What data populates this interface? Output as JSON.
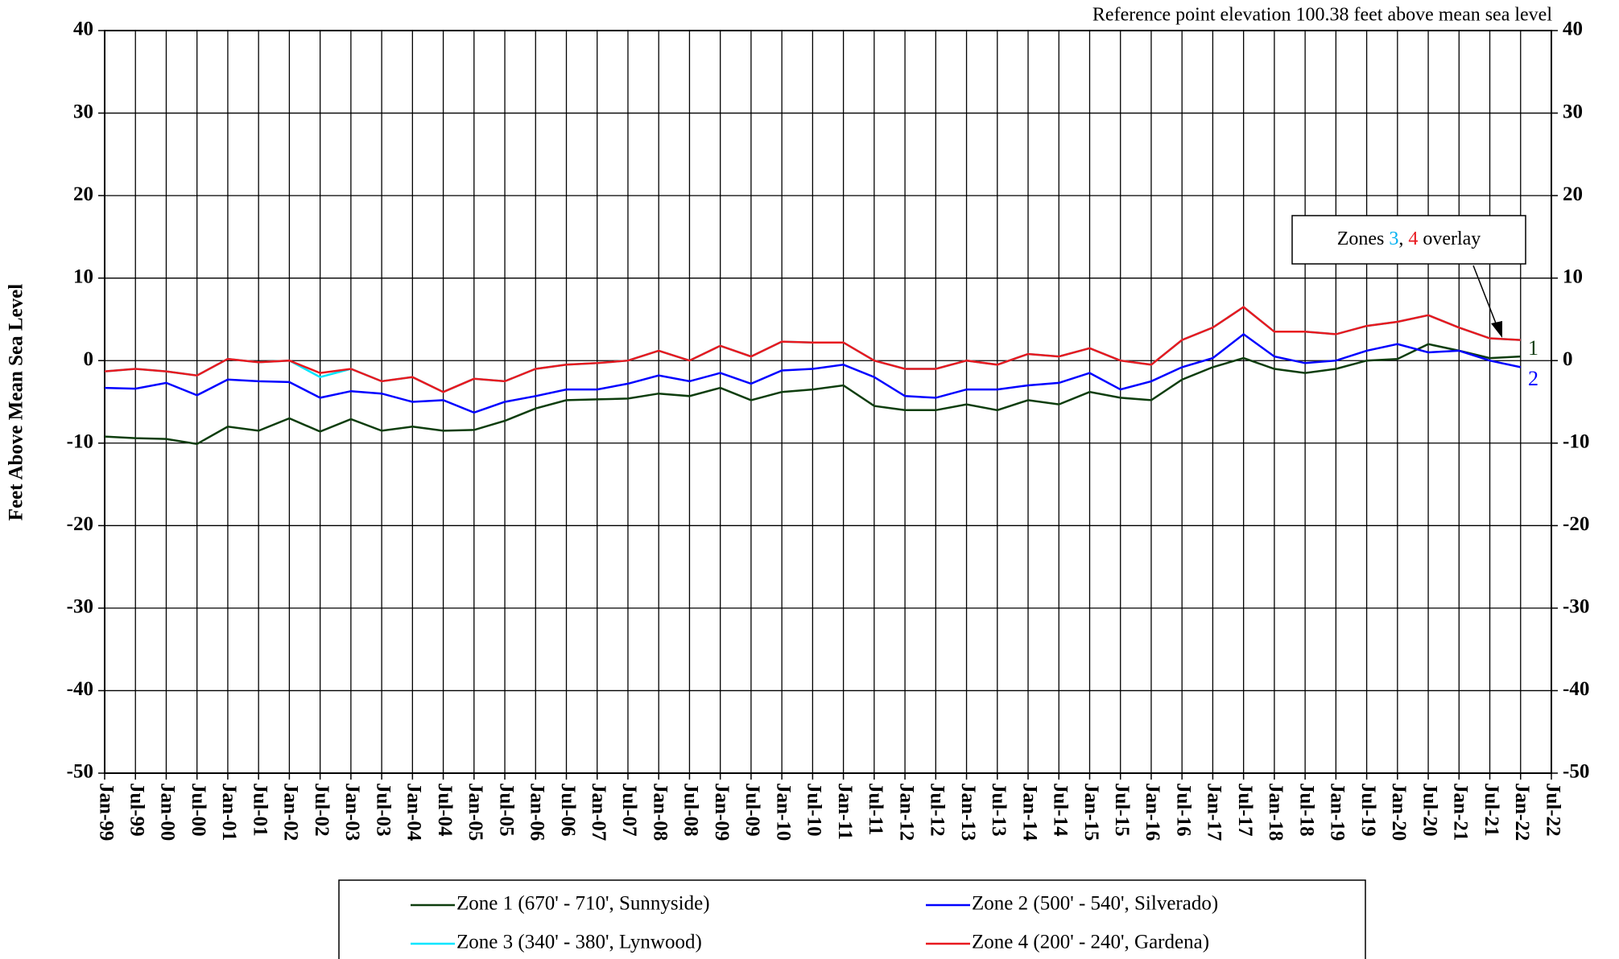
{
  "chart_data": {
    "type": "line",
    "annotation": "Reference point elevation 100.38 feet above mean sea level",
    "overlay_note": [
      "Zones ",
      "3",
      ", ",
      "4",
      " overlay"
    ],
    "series_labels": [
      "1",
      "2"
    ],
    "y_label": "Feet Above Mean Sea Level",
    "categories": [
      "Jan-99",
      "Jul-99",
      "Jan-00",
      "Jul-00",
      "Jan-01",
      "Jul-01",
      "Jan-02",
      "Jul-02",
      "Jan-03",
      "Jul-03",
      "Jan-04",
      "Jul-04",
      "Jan-05",
      "Jul-05",
      "Jan-06",
      "Jul-06",
      "Jan-07",
      "Jul-07",
      "Jan-08",
      "Jul-08",
      "Jan-09",
      "Jul-09",
      "Jan-10",
      "Jul-10",
      "Jan-11",
      "Jul-11",
      "Jan-12",
      "Jul-12",
      "Jan-13",
      "Jul-13",
      "Jan-14",
      "Jul-14",
      "Jan-15",
      "Jul-15",
      "Jan-16",
      "Jul-16",
      "Jan-17",
      "Jul-17",
      "Jan-18",
      "Jul-18",
      "Jan-19",
      "Jul-19",
      "Jan-20",
      "Jul-20",
      "Jan-21",
      "Jul-21",
      "Jan-22",
      "Jul-22"
    ],
    "series": [
      {
        "name": "Zone 1 (670' - 710', Sunnyside)",
        "color": "#0d3d0d",
        "values": [
          -9.2,
          -9.4,
          -9.5,
          -10.1,
          -8,
          -8.5,
          -7,
          -8.6,
          -7.1,
          -8.5,
          -8,
          -8.5,
          -8.4,
          -7.3,
          -5.8,
          -4.8,
          -4.7,
          -4.6,
          -4,
          -4.3,
          -3.3,
          -4.8,
          -3.8,
          -3.5,
          -3,
          -5.5,
          -6,
          -6,
          -5.3,
          -6,
          -4.8,
          -5.3,
          -3.8,
          -4.5,
          -4.8,
          -2.3,
          -0.8,
          0.3,
          -1,
          -1.5,
          -1,
          0,
          0.2,
          2,
          1.2,
          0.3,
          0.5,
          null
        ]
      },
      {
        "name": "Zone 2 (500' - 540', Silverado)",
        "color": "#0000ff",
        "values": [
          -3.3,
          -3.4,
          -2.7,
          -4.2,
          -2.3,
          -2.5,
          -2.6,
          -4.5,
          -3.7,
          -4,
          -5,
          -4.8,
          -6.3,
          -5,
          -4.3,
          -3.5,
          -3.5,
          -2.8,
          -1.8,
          -2.5,
          -1.5,
          -2.8,
          -1.2,
          -1,
          -0.5,
          -2,
          -4.3,
          -4.5,
          -3.5,
          -3.5,
          -3,
          -2.7,
          -1.5,
          -3.5,
          -2.5,
          -0.8,
          0.3,
          3.2,
          0.5,
          -0.3,
          0,
          1.2,
          2,
          1,
          1.2,
          0,
          -0.8,
          null
        ]
      },
      {
        "name": "Zone 3 (340' - 380', Lynwood)",
        "color": "#00e5ff",
        "values": [
          -1.3,
          -1,
          -1.3,
          -1.8,
          0.2,
          -0.2,
          0,
          -2,
          -1,
          -2.5,
          -2,
          -3.8,
          -2.2,
          -2.5,
          -1,
          -0.5,
          -0.3,
          0,
          1.2,
          0,
          1.8,
          0.5,
          2.3,
          2.2,
          2.2,
          0,
          -1,
          -1,
          0,
          -0.5,
          0.8,
          0.5,
          1.5,
          0,
          -0.5,
          2.5,
          4,
          6.5,
          3.5,
          3.5,
          3.2,
          4.2,
          4.7,
          5.5,
          4,
          2.7,
          2.5,
          null
        ]
      },
      {
        "name": "Zone 4 (200' - 240', Gardena)",
        "color": "#e8191f",
        "values": [
          -1.3,
          -1,
          -1.3,
          -1.8,
          0.2,
          -0.2,
          0,
          -1.5,
          -1,
          -2.5,
          -2,
          -3.8,
          -2.2,
          -2.5,
          -1,
          -0.5,
          -0.3,
          0,
          1.2,
          0,
          1.8,
          0.5,
          2.3,
          2.2,
          2.2,
          0,
          -1,
          -1,
          0,
          -0.5,
          0.8,
          0.5,
          1.5,
          0,
          -0.5,
          2.5,
          4,
          6.5,
          3.5,
          3.5,
          3.2,
          4.2,
          4.7,
          5.5,
          4,
          2.7,
          2.5,
          null
        ]
      }
    ],
    "ylim": [
      -50,
      40
    ],
    "yticks": [
      -50,
      -40,
      -30,
      -20,
      -10,
      0,
      10,
      20,
      30,
      40
    ],
    "grid": true
  }
}
